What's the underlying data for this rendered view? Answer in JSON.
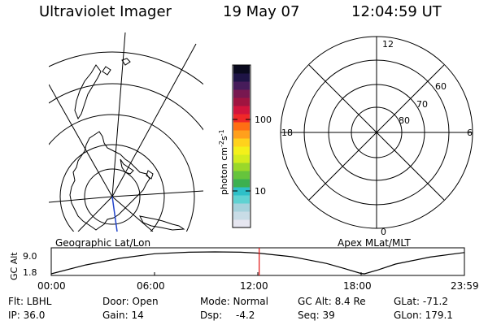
{
  "header": {
    "instrument": "Ultraviolet Imager",
    "date": "19 May 07",
    "time": "12:04:59 UT"
  },
  "panels": {
    "left_label": "Geographic Lat/Lon",
    "right_label": "Apex MLat/MLT",
    "mlt_labels": {
      "top": "12",
      "left": "18",
      "right": "6",
      "bottom": "0"
    },
    "lat_labels": [
      "60",
      "70",
      "80"
    ]
  },
  "colorbar": {
    "label_main": "photon cm",
    "label_exp1": "-2",
    "label_mid": "s",
    "label_exp2": "-1",
    "ticks": [
      "100",
      "10"
    ],
    "colors": [
      "#e6e6f0",
      "#c8dce6",
      "#a6d2dc",
      "#5fd2d2",
      "#2ec0c8",
      "#3cb050",
      "#66c43c",
      "#9ad82a",
      "#d4ec1e",
      "#f4f01a",
      "#ffd21c",
      "#ffa01c",
      "#ff6e14",
      "#f02828",
      "#d2143c",
      "#a01440",
      "#781850",
      "#461c5a",
      "#1e1446",
      "#0a0a1e"
    ]
  },
  "altitude_plot": {
    "ylabel": "GC Alt",
    "yticks": [
      "9.0",
      "1.8"
    ],
    "xticks": [
      "00:00",
      "06:00",
      "12:00",
      "18:00",
      "23:59"
    ]
  },
  "chart_data": {
    "type": "line",
    "title": "",
    "xlabel": "",
    "ylabel": "GC Alt",
    "xlim": [
      0,
      24
    ],
    "ylim": [
      1.8,
      9.0
    ],
    "current_time_marker": 12.08,
    "x": [
      0,
      2,
      4,
      6,
      8,
      9.5,
      11,
      12,
      14,
      16,
      17,
      18,
      18.2,
      19,
      20,
      22,
      24
    ],
    "series": [
      {
        "values": [
          1.8,
          4.7,
          6.9,
          8.4,
          8.9,
          9.0,
          8.9,
          8.6,
          7.4,
          5.2,
          3.6,
          1.9,
          1.8,
          3.1,
          5.0,
          7.3,
          8.8
        ]
      }
    ]
  },
  "status": {
    "filter": "Flt: LBHL",
    "ip": "IP: 36.0",
    "door": "Door: Open",
    "gain": "Gain: 14",
    "mode": "Mode: Normal",
    "dsp_label": "Dsp:",
    "dsp_value": "-4.2",
    "gc_alt": "GC Alt: 8.4 Re",
    "seq": "Seq: 39",
    "glat": "GLat: -71.2",
    "glon": "GLon: 179.1"
  }
}
